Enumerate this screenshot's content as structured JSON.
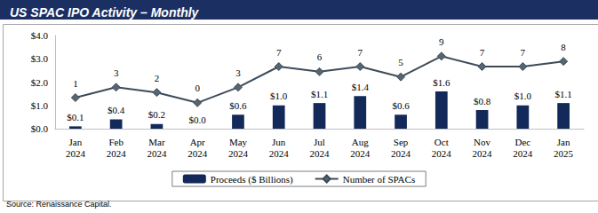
{
  "chart_data": {
    "type": "bar",
    "title": "US SPAC IPO Activity – Monthly",
    "source": "Source: Renaissance Capital.",
    "categories": [
      "Jan\n2024",
      "Feb\n2024",
      "Mar\n2024",
      "Apr\n2024",
      "May\n2024",
      "Jun\n2024",
      "Jul\n2024",
      "Aug\n2024",
      "Sep\n2024",
      "Oct\n2024",
      "Nov\n2024",
      "Dec\n2024",
      "Jan\n2025"
    ],
    "series": [
      {
        "name": "Proceeds ($ Billions)",
        "type": "bar",
        "color": "#13295a",
        "values": [
          0.1,
          0.4,
          0.2,
          0.0,
          0.6,
          1.0,
          1.1,
          1.4,
          0.6,
          1.6,
          0.8,
          1.0,
          1.1
        ],
        "value_labels": [
          "$0.1",
          "$0.4",
          "$0.2",
          "$0.0",
          "$0.6",
          "$1.0",
          "$1.1",
          "$1.4",
          "$0.6",
          "$1.6",
          "$0.8",
          "$1.0",
          "$1.1"
        ]
      },
      {
        "name": "Number of SPACs",
        "type": "line",
        "color": "#3d4b59",
        "marker": "diamond",
        "axis": "y2",
        "values": [
          1,
          3,
          2,
          0,
          3,
          7,
          6,
          7,
          5,
          9,
          7,
          7,
          8
        ]
      }
    ],
    "ylim": [
      0,
      4
    ],
    "yticks": [
      {
        "value": 0,
        "label": "$0.0"
      },
      {
        "value": 1,
        "label": "$1.0"
      },
      {
        "value": 2,
        "label": "$2.0"
      },
      {
        "value": 3,
        "label": "$3.0"
      },
      {
        "value": 4,
        "label": "$4.0"
      }
    ],
    "y2lim": [
      -5,
      13
    ],
    "grid": false,
    "legend": "bottom",
    "data_labels": true
  }
}
